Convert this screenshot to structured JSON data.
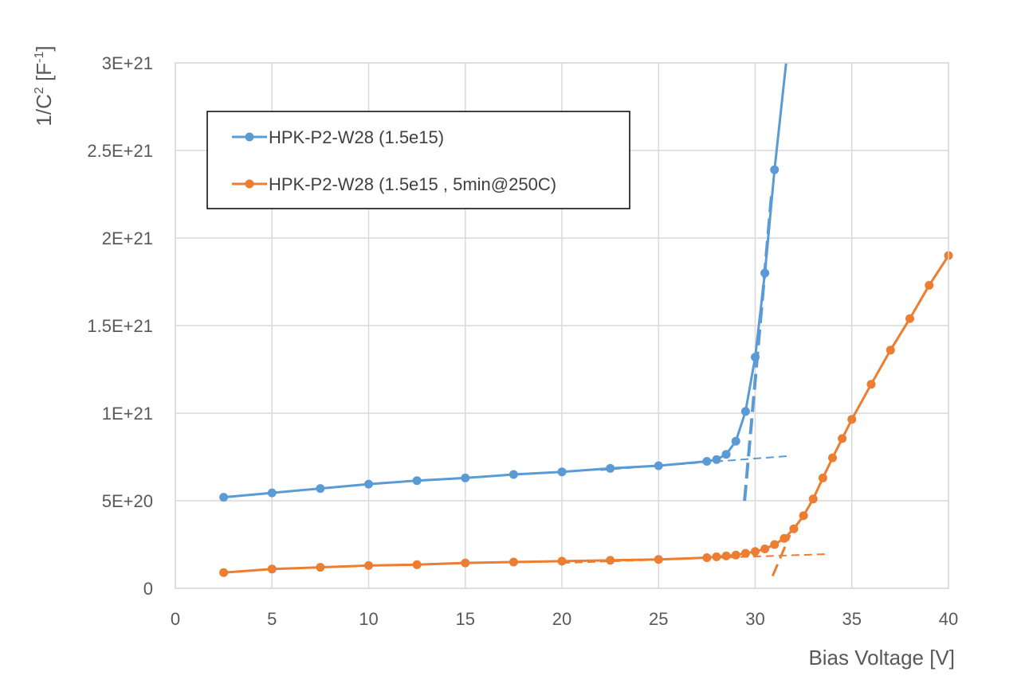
{
  "chart_data": {
    "type": "line",
    "xlabel": "Bias Voltage [V]",
    "ylabel": {
      "base": "1/C",
      "sup": "2",
      "unit_open": " [F",
      "unit_sup": "-1",
      "unit_close": "]"
    },
    "xlim": [
      0,
      40
    ],
    "ylim": [
      0,
      3e+21
    ],
    "x_ticks": [
      0,
      5,
      10,
      15,
      20,
      25,
      30,
      35,
      40
    ],
    "x_tick_labels": [
      "0",
      "5",
      "10",
      "15",
      "20",
      "25",
      "30",
      "35",
      "40"
    ],
    "y_ticks": [
      0,
      5e+20,
      1e+21,
      1.5e+21,
      2e+21,
      2.5e+21,
      3e+21
    ],
    "y_tick_labels": [
      "0",
      "5E+20",
      "1E+21",
      "1.5E+21",
      "2E+21",
      "2.5E+21",
      "3E+21"
    ],
    "grid": true,
    "legend_position": "top-left",
    "series": [
      {
        "name": "HPK-P2-W28 (1.5e15)",
        "color": "#5B9BD5",
        "x": [
          2.5,
          5,
          7.5,
          10,
          12.5,
          15,
          17.5,
          20,
          22.5,
          25,
          27.5,
          28,
          28.5,
          29,
          29.5,
          30,
          30.5,
          31
        ],
        "y": [
          5.2e+20,
          5.45e+20,
          5.7e+20,
          5.95e+20,
          6.15e+20,
          6.3e+20,
          6.5e+20,
          6.65e+20,
          6.85e+20,
          7e+20,
          7.25e+20,
          7.35e+20,
          7.65e+20,
          8.4e+20,
          1.01e+21,
          1.32e+21,
          1.8e+21,
          2.39e+21
        ],
        "line_end": {
          "x": 31.6,
          "y": 3e+21
        }
      },
      {
        "name": "HPK-P2-W28 (1.5e15 , 5min@250C)",
        "color": "#ED7D31",
        "x": [
          2.5,
          5,
          7.5,
          10,
          12.5,
          15,
          17.5,
          20,
          22.5,
          25,
          27.5,
          28,
          28.5,
          29,
          29.5,
          30,
          30.5,
          31,
          31.5,
          32,
          32.5,
          33,
          33.5,
          34,
          34.5,
          35,
          36,
          37,
          38,
          39,
          40
        ],
        "y": [
          9e+19,
          1.1e+20,
          1.2e+20,
          1.3e+20,
          1.35e+20,
          1.45e+20,
          1.5e+20,
          1.55e+20,
          1.6e+20,
          1.65e+20,
          1.75e+20,
          1.8e+20,
          1.85e+20,
          1.9e+20,
          2e+20,
          2.1e+20,
          2.25e+20,
          2.5e+20,
          2.85e+20,
          3.4e+20,
          4.15e+20,
          5.1e+20,
          6.3e+20,
          7.45e+20,
          8.55e+20,
          9.65e+20,
          1.165e+21,
          1.36e+21,
          1.54e+21,
          1.73e+21,
          1.9e+21
        ]
      }
    ],
    "fit_lines": [
      {
        "color": "#5B9BD5",
        "width": 2,
        "dash": "10,6",
        "x": [
          22,
          31.7
        ],
        "y": [
          6.75e+20,
          7.55e+20
        ]
      },
      {
        "color": "#5B9BD5",
        "width": 4,
        "dash": "20,8",
        "x": [
          29.45,
          30.85
        ],
        "y": [
          5e+20,
          2.25e+21
        ]
      },
      {
        "color": "#ED7D31",
        "width": 2,
        "dash": "10,6",
        "x": [
          20,
          33.6
        ],
        "y": [
          1.45e+20,
          1.95e+20
        ]
      },
      {
        "color": "#ED7D31",
        "width": 3,
        "dash": "16,8",
        "x": [
          30.9,
          31.8
        ],
        "y": [
          7e+19,
          3.05e+20
        ]
      }
    ]
  }
}
